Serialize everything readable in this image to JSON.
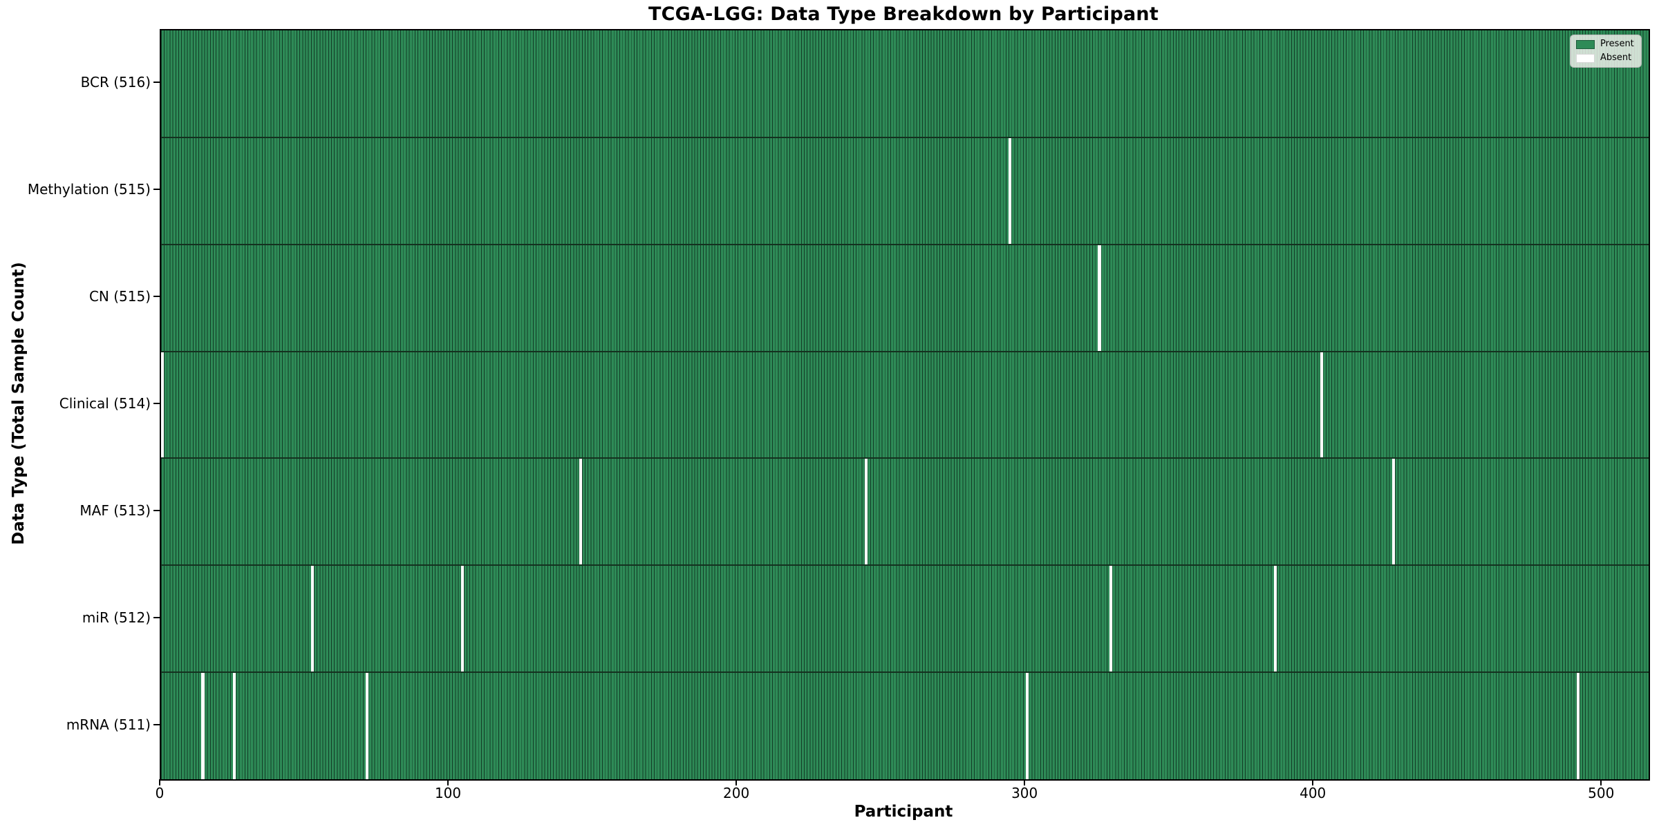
{
  "title": "TCGA-LGG: Data Type Breakdown by Participant",
  "legend": {
    "items": [
      {
        "label": "Present",
        "color": "#2e8b57"
      },
      {
        "label": "Absent",
        "color": "#ffffff"
      }
    ]
  },
  "chart_data": {
    "type": "heatmap",
    "title": "TCGA-LGG: Data Type Breakdown by Participant",
    "xlabel": "Participant",
    "ylabel": "Data Type (Total Sample Count)",
    "n_participants": 516,
    "x_range": [
      0,
      516
    ],
    "x_ticks": [
      0,
      100,
      200,
      300,
      400,
      500
    ],
    "x_tick_labels": [
      "0",
      "100",
      "200",
      "300",
      "400",
      "500"
    ],
    "grid": false,
    "legend_position": "upper right",
    "colors": {
      "present": "#2e8b57",
      "absent": "#ffffff",
      "cell_edge": "#123b26"
    },
    "rows": [
      {
        "name": "BCR",
        "label": "BCR (516)",
        "total": 516,
        "absent_participants": []
      },
      {
        "name": "Methylation",
        "label": "Methylation (515)",
        "total": 515,
        "absent_participants": [
          294
        ]
      },
      {
        "name": "CN",
        "label": "CN (515)",
        "total": 515,
        "absent_participants": [
          325
        ]
      },
      {
        "name": "Clinical",
        "label": "Clinical (514)",
        "total": 514,
        "absent_participants": [
          0,
          402
        ]
      },
      {
        "name": "MAF",
        "label": "MAF (513)",
        "total": 513,
        "absent_participants": [
          145,
          244,
          427
        ]
      },
      {
        "name": "miR",
        "label": "miR (512)",
        "total": 512,
        "absent_participants": [
          52,
          104,
          329,
          386
        ]
      },
      {
        "name": "mRNA",
        "label": "mRNA (511)",
        "total": 511,
        "absent_participants": [
          14,
          25,
          71,
          300,
          491
        ]
      }
    ]
  }
}
